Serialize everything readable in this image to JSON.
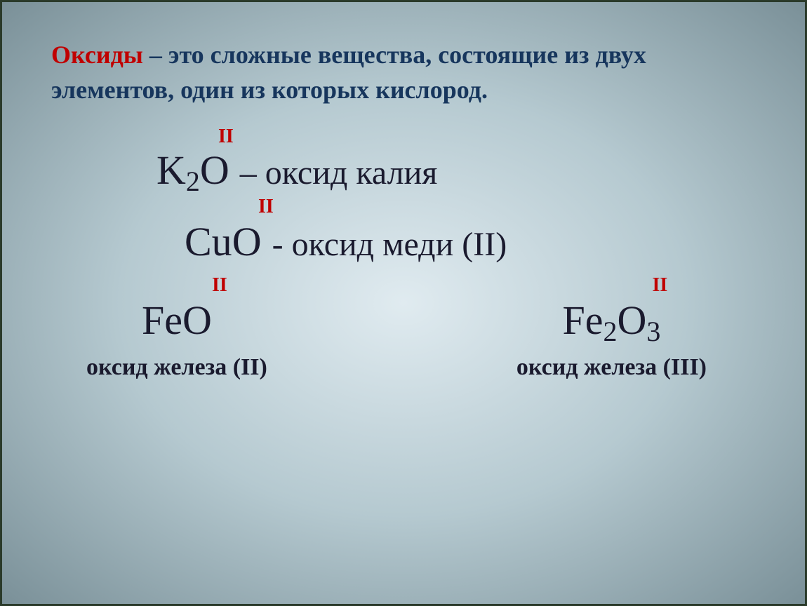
{
  "colors": {
    "term_color": "#c00000",
    "definition_color": "#17365d",
    "formula_color": "#1a1a2e",
    "valence_color": "#c00000",
    "background_gradient_center": "#e0ebf0",
    "background_gradient_mid": "#b5c9d0",
    "background_gradient_edge": "#7a9098",
    "border_color": "#2a3a2a"
  },
  "typography": {
    "font_family": "Times New Roman",
    "definition_fontsize": 36,
    "formula_fontsize": 58,
    "formula_desc_fontsize": 48,
    "subscript_fontsize": 40,
    "valence_fontsize": 28,
    "sub_label_fontsize": 34
  },
  "definition": {
    "term": "Оксиды",
    "separator": " – ",
    "text": "это сложные вещества, состоящие из двух элементов, один из которых кислород",
    "terminator": "."
  },
  "formulas": {
    "row1": {
      "element1": "K",
      "sub1": "2",
      "element2": "O",
      "valence": "II",
      "separator": " – ",
      "name": "оксид калия"
    },
    "row2": {
      "element1": "Cu",
      "element2": "O",
      "valence": "II",
      "separator": "  - ",
      "name": "оксид меди (II)"
    },
    "row3_left": {
      "element1": "Fe",
      "element2": "O",
      "valence": "II",
      "label": "оксид железа (II)"
    },
    "row3_right": {
      "element1": "Fe",
      "sub1": "2",
      "element2": "O",
      "sub2": "3",
      "valence": "II",
      "label": "оксид железа (III)"
    }
  }
}
